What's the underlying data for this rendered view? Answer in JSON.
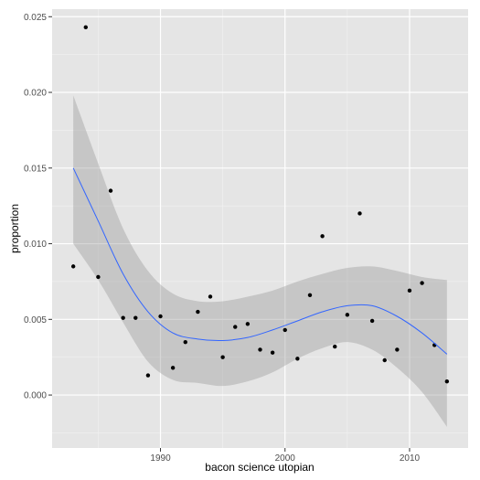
{
  "chart_data": {
    "type": "scatter",
    "xlabel": "bacon science utopian",
    "ylabel": "proportion",
    "xlim": [
      1981.3,
      2014.7
    ],
    "ylim": [
      -0.0035,
      0.0255
    ],
    "x_ticks": [
      1990,
      2000,
      2010
    ],
    "x_tick_labels": [
      "1990",
      "2000",
      "2010"
    ],
    "y_ticks": [
      0.0,
      0.005,
      0.01,
      0.015,
      0.02,
      0.025
    ],
    "y_tick_labels": [
      "0.000",
      "0.005",
      "0.010",
      "0.015",
      "0.020",
      "0.025"
    ],
    "grid": true,
    "points": {
      "x": [
        1983,
        1984,
        1985,
        1986,
        1987,
        1988,
        1989,
        1990,
        1991,
        1992,
        1993,
        1994,
        1995,
        1996,
        1997,
        1998,
        1999,
        2000,
        2001,
        2002,
        2003,
        2004,
        2005,
        2006,
        2007,
        2008,
        2009,
        2010,
        2011,
        2012,
        2013
      ],
      "y": [
        0.0085,
        0.0243,
        0.0078,
        0.0135,
        0.0051,
        0.0051,
        0.0013,
        0.0052,
        0.0018,
        0.0035,
        0.0055,
        0.0065,
        0.0025,
        0.0045,
        0.0047,
        0.003,
        0.0028,
        0.0043,
        0.0024,
        0.0066,
        0.0105,
        0.0032,
        0.0053,
        0.012,
        0.0049,
        0.0023,
        0.003,
        0.0069,
        0.0074,
        0.0033,
        0.0009
      ]
    },
    "smooth": {
      "x": [
        1983,
        1985,
        1987,
        1989,
        1991,
        1993,
        1995,
        1997,
        1999,
        2001,
        2003,
        2005,
        2007,
        2009,
        2011,
        2013
      ],
      "y": [
        0.015,
        0.0115,
        0.008,
        0.0055,
        0.0041,
        0.0037,
        0.0036,
        0.0038,
        0.0043,
        0.0049,
        0.0055,
        0.0059,
        0.0059,
        0.0052,
        0.0041,
        0.0027
      ],
      "lower": [
        0.01,
        0.0076,
        0.0048,
        0.0022,
        0.001,
        0.0008,
        0.0006,
        0.0009,
        0.0015,
        0.0024,
        0.0031,
        0.0035,
        0.003,
        0.0018,
        0.0002,
        -0.0021
      ],
      "upper": [
        0.0198,
        0.0153,
        0.011,
        0.0082,
        0.0067,
        0.0062,
        0.0062,
        0.0065,
        0.0069,
        0.0075,
        0.008,
        0.0084,
        0.0085,
        0.0082,
        0.0078,
        0.0076
      ]
    },
    "colors": {
      "panel": "#e5e5e5",
      "grid_major": "#ffffff",
      "grid_minor": "#f2f2f2",
      "ribbon": "#999999",
      "line": "#3366ff",
      "point": "#000000"
    }
  }
}
